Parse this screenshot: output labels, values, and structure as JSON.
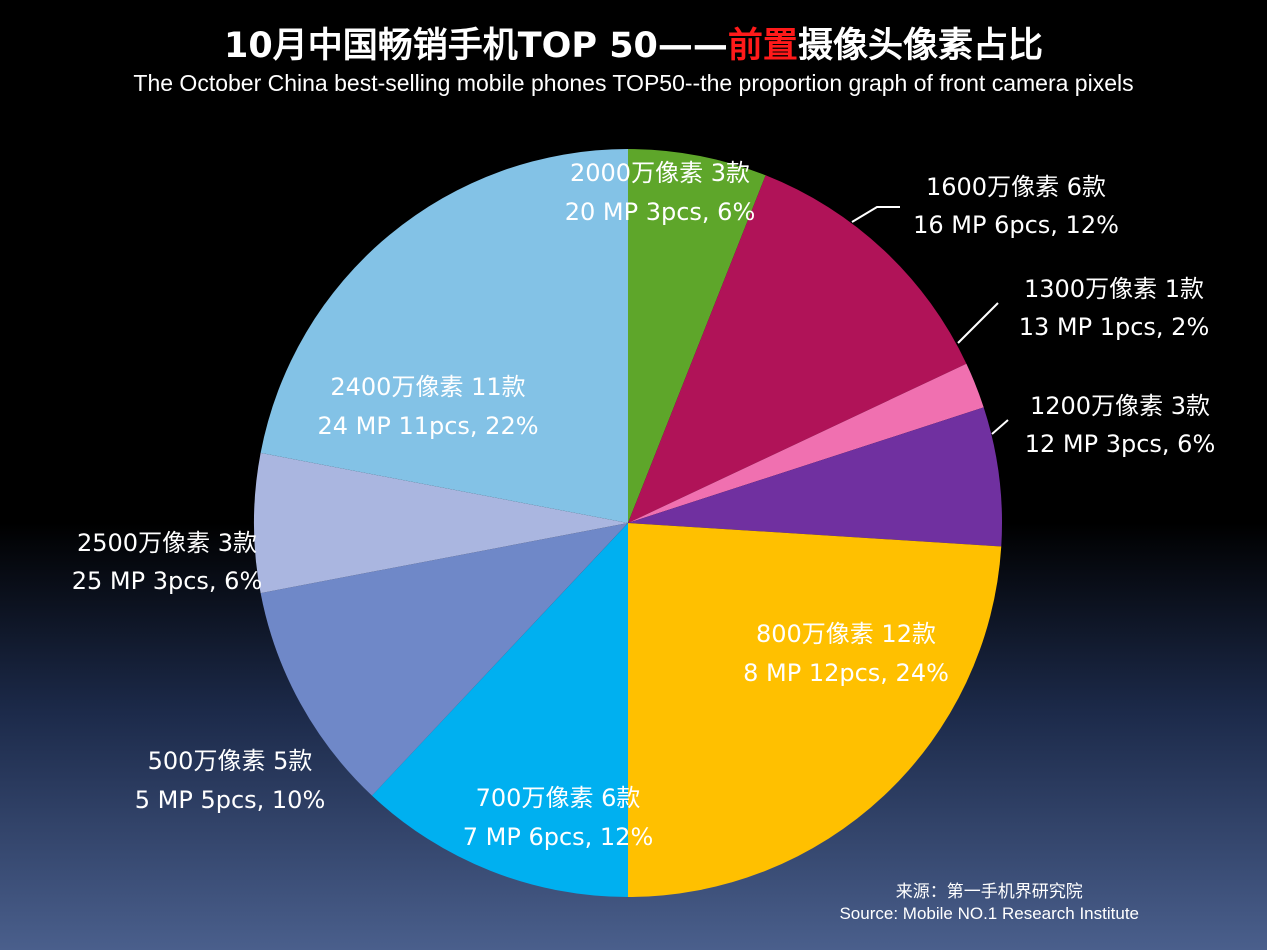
{
  "title": {
    "prefix": "10月中国畅销手机TOP 50——",
    "highlight": "前置",
    "suffix": "摄像头像素占比"
  },
  "subtitle": "The October China best-selling mobile phones TOP50--the proportion graph of front camera pixels",
  "source": {
    "cn": "来源：第一手机界研究院",
    "en": "Source: Mobile NO.1 Research Institute"
  },
  "chart_data": {
    "type": "pie",
    "title": "10月中国畅销手机TOP 50——前置摄像头像素占比",
    "subtitle": "The October China best-selling mobile phones TOP50--the proportion graph of front camera pixels",
    "start": "12 o'clock, clockwise",
    "slices": [
      {
        "key": "mp20",
        "value": 3,
        "percent": 6,
        "color": "#5ea62a",
        "label_cn": "2000万像素 3款",
        "label_en": "20 MP 3pcs,  6%"
      },
      {
        "key": "mp16",
        "value": 6,
        "percent": 12,
        "color": "#b01358",
        "label_cn": "1600万像素 6款",
        "label_en": "16 MP 6pcs, 12%"
      },
      {
        "key": "mp13",
        "value": 1,
        "percent": 2,
        "color": "#f070b0",
        "label_cn": "1300万像素 1款",
        "label_en": "13 MP 1pcs,  2%"
      },
      {
        "key": "mp12",
        "value": 3,
        "percent": 6,
        "color": "#7030a0",
        "label_cn": "1200万像素 3款",
        "label_en": "12 MP 3pcs,  6%"
      },
      {
        "key": "mp8",
        "value": 12,
        "percent": 24,
        "color": "#ffc000",
        "label_cn": "800万像素 12款",
        "label_en": "8 MP 12pcs, 24%"
      },
      {
        "key": "mp7",
        "value": 6,
        "percent": 12,
        "color": "#00b0f0",
        "label_cn": "700万像素 6款",
        "label_en": "7 MP 6pcs,  12%"
      },
      {
        "key": "mp5",
        "value": 5,
        "percent": 10,
        "color": "#6f88c8",
        "label_cn": "500万像素 5款",
        "label_en": "5 MP 5pcs,  10%"
      },
      {
        "key": "mp25",
        "value": 3,
        "percent": 6,
        "color": "#aab6e0",
        "label_cn": "2500万像素  3款",
        "label_en": "25 MP 3pcs, 6%"
      },
      {
        "key": "mp24",
        "value": 11,
        "percent": 22,
        "color": "#83c2e6",
        "label_cn": "2400万像素  11款",
        "label_en": "24 MP 11pcs,  22%"
      }
    ]
  }
}
